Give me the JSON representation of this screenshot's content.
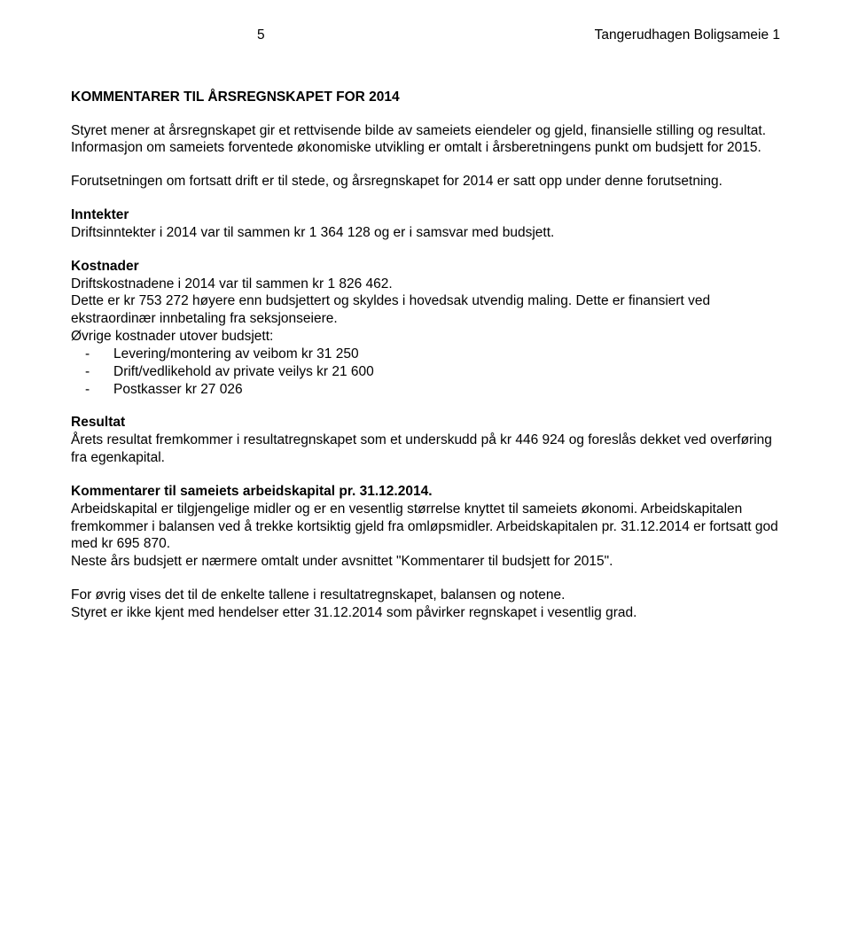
{
  "header": {
    "page_number": "5",
    "doc_title": "Tangerudhagen Boligsameie 1"
  },
  "title": "KOMMENTARER TIL ÅRSREGNSKAPET FOR 2014",
  "p1": "Styret mener at årsregnskapet gir et rettvisende bilde av sameiets eiendeler og gjeld, finansielle stilling og resultat.",
  "p2": "Informasjon om sameiets forventede økonomiske utvikling er omtalt i årsberetningens punkt om budsjett for 2015.",
  "p3": "Forutsetningen om fortsatt drift er til stede, og årsregnskapet for 2014 er satt opp under denne forutsetning.",
  "inntekter_head": "Inntekter",
  "inntekter_text": "Driftsinntekter i 2014 var til sammen kr 1 364 128 og er i samsvar med budsjett.",
  "kostnader_head": "Kostnader",
  "kostnader_l1": "Driftskostnadene i 2014 var til sammen kr 1 826 462.",
  "kostnader_l2": "Dette er kr 753 272 høyere enn budsjettert og skyldes i hovedsak utvendig maling. Dette er finansiert ved ekstraordinær innbetaling fra seksjonseiere.",
  "kostnader_l3": "Øvrige kostnader utover budsjett:",
  "bullets": {
    "b1": "Levering/montering av veibom kr 31 250",
    "b2": "Drift/vedlikehold av private veilys kr 21 600",
    "b3": "Postkasser kr 27 026"
  },
  "resultat_head": "Resultat",
  "resultat_text": "Årets resultat fremkommer i resultatregnskapet som et underskudd på kr 446 924 og foreslås dekket ved overføring fra egenkapital.",
  "kommentarer_head": "Kommentarer til sameiets arbeidskapital pr. 31.12.2014.",
  "kommentarer_l1": "Arbeidskapital er tilgjengelige midler og er en vesentlig størrelse knyttet til sameiets økonomi. Arbeidskapitalen fremkommer i balansen ved å trekke kortsiktig gjeld fra omløpsmidler. Arbeidskapitalen pr. 31.12.2014 er fortsatt god med kr 695 870.",
  "kommentarer_l2": "Neste års budsjett er nærmere omtalt under avsnittet \"Kommentarer til budsjett for 2015\".",
  "p_ref": "For øvrig vises det til de enkelte tallene i resultatregnskapet, balansen og notene.",
  "p_last": "Styret er ikke kjent med hendelser etter 31.12.2014 som påvirker regnskapet i vesentlig grad."
}
